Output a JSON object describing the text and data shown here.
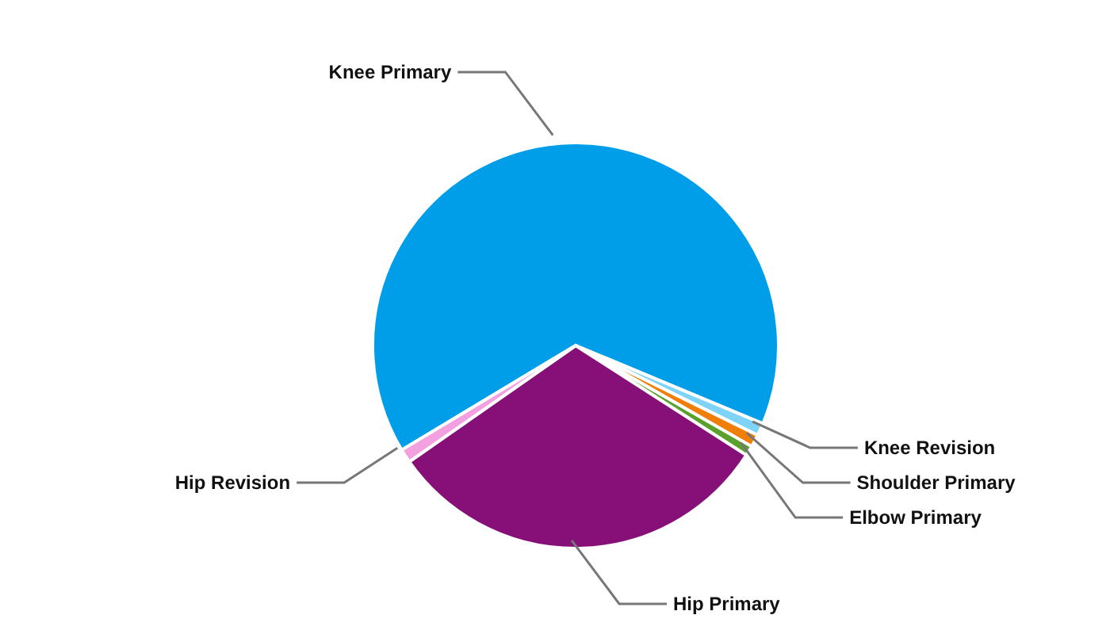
{
  "chart_data": {
    "type": "pie",
    "categories": [
      "Knee Primary",
      "Knee Revision",
      "Shoulder Primary",
      "Elbow Primary",
      "Hip Primary",
      "Hip Revision"
    ],
    "values": [
      64.9,
      1,
      1,
      0.8,
      31.2,
      1.1
    ],
    "colors": [
      "#009de8",
      "#7fd3f7",
      "#f07f09",
      "#5aa02c",
      "#870f78",
      "#f2a0e0"
    ],
    "legend": false
  }
}
